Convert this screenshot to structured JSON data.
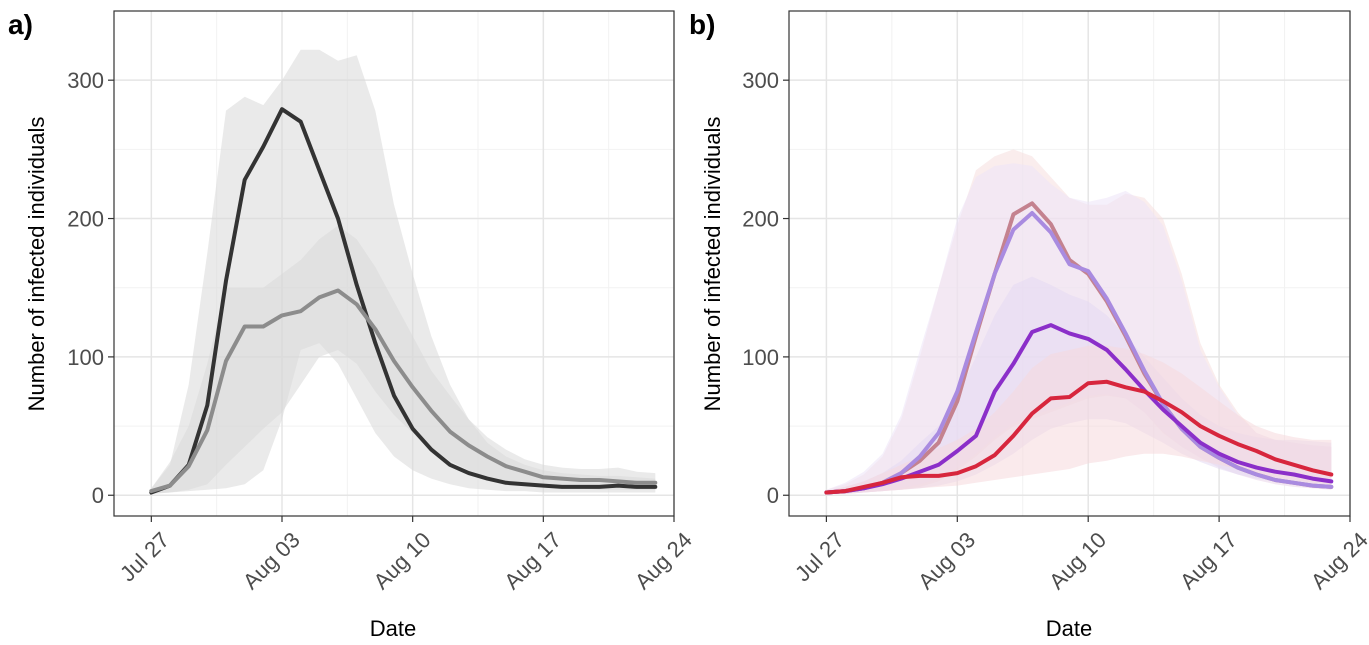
{
  "chart_data": [
    {
      "type": "line",
      "panel_label": "a)",
      "xlabel": "Date",
      "ylabel": "Number of infected individuals",
      "x_tick_labels": [
        "Jul 27",
        "Aug 03",
        "Aug 10",
        "Aug 17",
        "Aug 24"
      ],
      "x_ticks": [
        "2020-07-27",
        "2020-08-03",
        "2020-08-10",
        "2020-08-17",
        "2020-08-24"
      ],
      "xlim": [
        "2020-07-25",
        "2020-08-24"
      ],
      "y_ticks": [
        0,
        100,
        200,
        300
      ],
      "ylim": [
        -15,
        350
      ],
      "grid": true,
      "x": [
        "2020-07-27",
        "2020-07-28",
        "2020-07-29",
        "2020-07-30",
        "2020-07-31",
        "2020-08-01",
        "2020-08-02",
        "2020-08-03",
        "2020-08-04",
        "2020-08-05",
        "2020-08-06",
        "2020-08-07",
        "2020-08-08",
        "2020-08-09",
        "2020-08-10",
        "2020-08-11",
        "2020-08-12",
        "2020-08-13",
        "2020-08-14",
        "2020-08-15",
        "2020-08-16",
        "2020-08-17",
        "2020-08-18",
        "2020-08-19",
        "2020-08-20",
        "2020-08-21",
        "2020-08-22",
        "2020-08-23"
      ],
      "series": [
        {
          "color": "#333333",
          "band_color": "#d9d9d9",
          "values": [
            2,
            7,
            22,
            65,
            155,
            228,
            252,
            279,
            270,
            235,
            200,
            152,
            110,
            72,
            48,
            33,
            22,
            16,
            12,
            9,
            8,
            7,
            6,
            6,
            6,
            7,
            6,
            6
          ],
          "lower": [
            1,
            2,
            3,
            4,
            5,
            8,
            18,
            55,
            105,
            110,
            95,
            70,
            45,
            28,
            18,
            12,
            8,
            5,
            4,
            3,
            3,
            2,
            2,
            2,
            2,
            2,
            2,
            2
          ],
          "upper": [
            5,
            22,
            80,
            175,
            278,
            288,
            282,
            300,
            322,
            322,
            314,
            318,
            278,
            210,
            160,
            115,
            80,
            55,
            38,
            28,
            22,
            18,
            16,
            15,
            14,
            14,
            13,
            12
          ]
        },
        {
          "color": "#8c8c8c",
          "band_color": "#d9d9d9",
          "values": [
            3,
            7,
            21,
            47,
            97,
            122,
            122,
            130,
            133,
            143,
            148,
            138,
            120,
            97,
            78,
            61,
            46,
            36,
            28,
            21,
            17,
            13,
            12,
            11,
            11,
            10,
            9,
            9
          ],
          "lower": [
            1,
            2,
            4,
            8,
            22,
            35,
            48,
            60,
            80,
            100,
            105,
            95,
            75,
            58,
            45,
            34,
            25,
            18,
            13,
            10,
            8,
            6,
            5,
            5,
            4,
            4,
            4,
            4
          ],
          "upper": [
            5,
            24,
            50,
            95,
            150,
            150,
            150,
            160,
            170,
            185,
            195,
            185,
            165,
            140,
            115,
            90,
            72,
            55,
            42,
            33,
            26,
            22,
            20,
            19,
            19,
            20,
            17,
            16
          ]
        }
      ]
    },
    {
      "type": "line",
      "panel_label": "b)",
      "xlabel": "Date",
      "ylabel": "Number of infected individuals",
      "x_tick_labels": [
        "Jul 27",
        "Aug 03",
        "Aug 10",
        "Aug 17",
        "Aug 24"
      ],
      "x_ticks": [
        "2020-07-27",
        "2020-08-03",
        "2020-08-10",
        "2020-08-17",
        "2020-08-24"
      ],
      "xlim": [
        "2020-07-25",
        "2020-08-24"
      ],
      "y_ticks": [
        0,
        100,
        200,
        300
      ],
      "ylim": [
        -15,
        350
      ],
      "grid": true,
      "x": [
        "2020-07-27",
        "2020-07-28",
        "2020-07-29",
        "2020-07-30",
        "2020-07-31",
        "2020-08-01",
        "2020-08-02",
        "2020-08-03",
        "2020-08-04",
        "2020-08-05",
        "2020-08-06",
        "2020-08-07",
        "2020-08-08",
        "2020-08-09",
        "2020-08-10",
        "2020-08-11",
        "2020-08-12",
        "2020-08-13",
        "2020-08-14",
        "2020-08-15",
        "2020-08-16",
        "2020-08-17",
        "2020-08-18",
        "2020-08-19",
        "2020-08-20",
        "2020-08-21",
        "2020-08-22",
        "2020-08-23"
      ],
      "series": [
        {
          "color": "#c4828f",
          "band_color": "#f6dede",
          "values": [
            2,
            3,
            5,
            9,
            16,
            25,
            38,
            68,
            115,
            160,
            203,
            211,
            196,
            170,
            160,
            140,
            115,
            88,
            66,
            48,
            35,
            27,
            20,
            15,
            11,
            9,
            7,
            6
          ],
          "lower": [
            1,
            1,
            2,
            3,
            4,
            6,
            10,
            18,
            28,
            40,
            50,
            55,
            60,
            65,
            70,
            72,
            70,
            60,
            45,
            35,
            27,
            20,
            15,
            11,
            8,
            6,
            5,
            4
          ],
          "upper": [
            4,
            8,
            15,
            28,
            55,
            100,
            150,
            195,
            235,
            245,
            250,
            245,
            230,
            215,
            210,
            210,
            218,
            215,
            200,
            160,
            110,
            80,
            60,
            45,
            40,
            38,
            36,
            35
          ]
        },
        {
          "color": "#a98be0",
          "band_color": "#ece4f7",
          "values": [
            2,
            3,
            5,
            9,
            16,
            28,
            45,
            75,
            118,
            160,
            192,
            204,
            190,
            167,
            162,
            142,
            117,
            90,
            66,
            48,
            35,
            27,
            20,
            15,
            11,
            9,
            7,
            6
          ],
          "lower": [
            1,
            1,
            2,
            3,
            5,
            8,
            12,
            20,
            30,
            42,
            52,
            58,
            62,
            67,
            72,
            73,
            70,
            60,
            46,
            35,
            27,
            20,
            15,
            11,
            8,
            6,
            5,
            4
          ],
          "upper": [
            4,
            9,
            17,
            30,
            58,
            105,
            150,
            200,
            230,
            238,
            240,
            238,
            225,
            215,
            212,
            215,
            220,
            212,
            195,
            155,
            105,
            78,
            58,
            45,
            40,
            38,
            36,
            35
          ]
        },
        {
          "color": "#8b2fc9",
          "band_color": "#e3d8f3",
          "values": [
            2,
            3,
            5,
            8,
            12,
            17,
            22,
            32,
            43,
            75,
            95,
            118,
            123,
            117,
            113,
            105,
            91,
            76,
            62,
            50,
            38,
            30,
            24,
            20,
            17,
            15,
            12,
            10
          ],
          "lower": [
            1,
            1,
            2,
            3,
            4,
            5,
            7,
            10,
            15,
            22,
            30,
            40,
            48,
            52,
            55,
            55,
            52,
            45,
            38,
            30,
            24,
            19,
            15,
            12,
            10,
            8,
            7,
            6
          ],
          "upper": [
            3,
            6,
            10,
            16,
            25,
            38,
            50,
            72,
            100,
            130,
            152,
            158,
            152,
            145,
            140,
            130,
            115,
            100,
            85,
            70,
            58,
            50,
            45,
            42,
            40,
            40,
            39,
            38
          ]
        },
        {
          "color": "#d7263d",
          "band_color": "#f6d8dc",
          "values": [
            2,
            3,
            6,
            9,
            13,
            14,
            14,
            16,
            21,
            29,
            43,
            59,
            70,
            71,
            81,
            82,
            78,
            75,
            68,
            60,
            50,
            43,
            37,
            32,
            26,
            22,
            18,
            15
          ],
          "lower": [
            1,
            1,
            2,
            3,
            4,
            5,
            6,
            7,
            9,
            11,
            13,
            15,
            17,
            19,
            23,
            25,
            28,
            30,
            30,
            28,
            25,
            22,
            19,
            16,
            13,
            11,
            9,
            8
          ],
          "upper": [
            3,
            6,
            10,
            16,
            22,
            28,
            34,
            40,
            48,
            60,
            75,
            92,
            102,
            105,
            108,
            108,
            106,
            102,
            96,
            88,
            78,
            68,
            58,
            50,
            45,
            42,
            40,
            40
          ]
        }
      ]
    }
  ]
}
